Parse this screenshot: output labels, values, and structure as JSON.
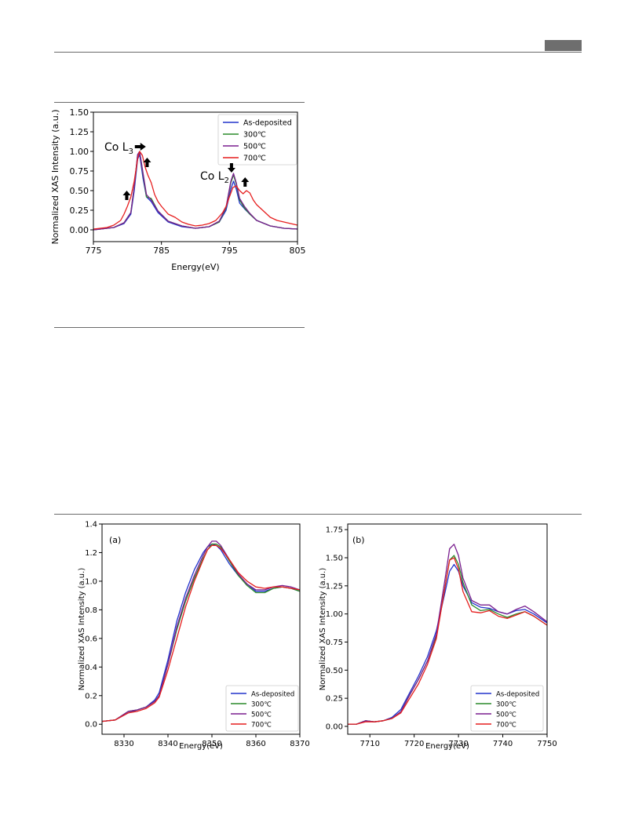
{
  "page": {
    "colors": {
      "rule": "#6a6a6a",
      "header_block": "#6e6e6e"
    }
  },
  "series_colors": {
    "As-deposited": "#2233cc",
    "300℃": "#2a8a2a",
    "500℃": "#7a1f8f",
    "700℃": "#e61e1e"
  },
  "chart_data": [
    {
      "type": "line",
      "xlabel": "Energy(eV)",
      "ylabel": "Normalized XAS Intensity (a.u.)",
      "xlim": [
        775,
        805
      ],
      "ylim": [
        -0.15,
        1.5
      ],
      "x_ticks": [
        "775",
        "785",
        "795",
        "805"
      ],
      "y_ticks": [
        "0.00",
        "0.25",
        "0.50",
        "0.75",
        "1.00",
        "1.25",
        "1.50"
      ],
      "legend_position": "top-right",
      "legend": [
        "As-deposited",
        "300℃",
        "500℃",
        "700℃"
      ],
      "annotations": {
        "l3": {
          "prefix": "Co L",
          "sub": "3"
        },
        "l2": {
          "prefix": "Co L",
          "sub": "2"
        }
      },
      "arrows": [
        {
          "dir": "right",
          "x": 781.9,
          "y": 1.06
        },
        {
          "dir": "up",
          "x": 782.9,
          "y": 0.86
        },
        {
          "dir": "up",
          "x": 779.9,
          "y": 0.44
        },
        {
          "dir": "down",
          "x": 795.3,
          "y": 0.79
        },
        {
          "dir": "up",
          "x": 797.3,
          "y": 0.61
        }
      ],
      "series": [
        {
          "name": "As-deposited",
          "x": [
            775,
            778,
            779.5,
            780.5,
            781,
            781.5,
            781.8,
            782.3,
            782.8,
            783.5,
            784.5,
            786,
            788,
            790,
            792,
            793.5,
            794.5,
            795.2,
            795.6,
            796,
            796.5,
            797.2,
            798,
            799,
            801,
            803,
            805
          ],
          "y": [
            0.0,
            0.03,
            0.08,
            0.2,
            0.5,
            0.9,
            0.96,
            0.65,
            0.42,
            0.36,
            0.22,
            0.1,
            0.04,
            0.02,
            0.04,
            0.1,
            0.25,
            0.52,
            0.62,
            0.52,
            0.34,
            0.27,
            0.2,
            0.12,
            0.05,
            0.02,
            0.01
          ]
        },
        {
          "name": "300℃",
          "x": [
            775,
            778,
            779.5,
            780.5,
            781,
            781.5,
            781.8,
            782.3,
            782.8,
            783.5,
            784.5,
            786,
            788,
            790,
            792,
            793.5,
            794.5,
            795.2,
            795.6,
            796,
            796.5,
            797.2,
            798,
            799,
            801,
            803,
            805
          ],
          "y": [
            0.0,
            0.03,
            0.09,
            0.22,
            0.55,
            0.95,
            1.0,
            0.7,
            0.42,
            0.4,
            0.24,
            0.11,
            0.05,
            0.02,
            0.04,
            0.1,
            0.28,
            0.6,
            0.7,
            0.58,
            0.38,
            0.28,
            0.2,
            0.12,
            0.05,
            0.02,
            0.01
          ]
        },
        {
          "name": "500℃",
          "x": [
            775,
            778,
            779.5,
            780.5,
            781,
            781.5,
            781.8,
            782.3,
            782.8,
            783.5,
            784.5,
            786,
            788,
            790,
            792,
            793.5,
            794.5,
            795.2,
            795.6,
            796,
            796.5,
            797.2,
            798,
            799,
            801,
            803,
            805
          ],
          "y": [
            0.0,
            0.03,
            0.09,
            0.22,
            0.55,
            0.96,
            1.0,
            0.72,
            0.45,
            0.38,
            0.24,
            0.11,
            0.05,
            0.02,
            0.04,
            0.11,
            0.29,
            0.62,
            0.72,
            0.6,
            0.4,
            0.3,
            0.21,
            0.12,
            0.05,
            0.02,
            0.01
          ]
        },
        {
          "name": "700℃",
          "x": [
            775,
            776,
            777,
            778,
            779,
            779.5,
            780,
            780.5,
            781,
            781.5,
            781.8,
            782.2,
            782.6,
            783,
            783.5,
            784,
            784.5,
            785,
            786,
            787,
            788,
            789,
            790,
            791,
            792,
            793,
            794,
            794.5,
            795,
            795.5,
            796,
            796.5,
            797,
            797.5,
            798,
            798.5,
            799,
            800,
            801,
            802,
            803,
            804,
            805
          ],
          "y": [
            0.01,
            0.02,
            0.03,
            0.06,
            0.12,
            0.2,
            0.3,
            0.42,
            0.62,
            0.9,
            1.0,
            0.95,
            0.8,
            0.7,
            0.6,
            0.45,
            0.36,
            0.3,
            0.2,
            0.16,
            0.1,
            0.07,
            0.05,
            0.06,
            0.08,
            0.12,
            0.22,
            0.3,
            0.42,
            0.54,
            0.56,
            0.5,
            0.46,
            0.5,
            0.47,
            0.38,
            0.32,
            0.24,
            0.16,
            0.12,
            0.1,
            0.08,
            0.06
          ]
        }
      ]
    },
    {
      "type": "line",
      "panel_label": "(a)",
      "xlabel": "Energy(eV)",
      "ylabel": "Normalized XAS Intensity (a.u.)",
      "xlim": [
        8325,
        8370
      ],
      "ylim": [
        -0.07,
        1.4
      ],
      "x_ticks": [
        "8330",
        "8340",
        "8350",
        "8360",
        "8370"
      ],
      "y_ticks": [
        "0.0",
        "0.2",
        "0.4",
        "0.6",
        "0.8",
        "1.0",
        "1.2",
        "1.4"
      ],
      "legend_position": "bottom-right",
      "legend": [
        "As-deposited",
        "300℃",
        "500℃",
        "700℃"
      ],
      "series": [
        {
          "name": "As-deposited",
          "x": [
            8325,
            8328,
            8331,
            8333,
            8335,
            8337,
            8338,
            8340,
            8342,
            8344,
            8346,
            8348,
            8349,
            8350,
            8351,
            8352,
            8354,
            8356,
            8358,
            8360,
            8362,
            8364,
            8366,
            8368,
            8370
          ],
          "y": [
            0.02,
            0.03,
            0.08,
            0.1,
            0.12,
            0.17,
            0.22,
            0.45,
            0.72,
            0.92,
            1.08,
            1.2,
            1.24,
            1.26,
            1.25,
            1.22,
            1.12,
            1.04,
            0.98,
            0.93,
            0.93,
            0.95,
            0.96,
            0.95,
            0.93
          ]
        },
        {
          "name": "300℃",
          "x": [
            8325,
            8328,
            8331,
            8333,
            8335,
            8337,
            8338,
            8340,
            8342,
            8344,
            8346,
            8348,
            8349,
            8350,
            8351,
            8352,
            8354,
            8356,
            8358,
            8360,
            8362,
            8364,
            8366,
            8368,
            8370
          ],
          "y": [
            0.02,
            0.03,
            0.09,
            0.1,
            0.12,
            0.16,
            0.2,
            0.42,
            0.66,
            0.86,
            1.02,
            1.16,
            1.22,
            1.26,
            1.26,
            1.24,
            1.14,
            1.04,
            0.97,
            0.92,
            0.92,
            0.95,
            0.96,
            0.95,
            0.93
          ]
        },
        {
          "name": "500℃",
          "x": [
            8325,
            8328,
            8331,
            8333,
            8335,
            8337,
            8338,
            8340,
            8342,
            8344,
            8346,
            8348,
            8349,
            8350,
            8351,
            8352,
            8354,
            8356,
            8358,
            8360,
            8362,
            8364,
            8366,
            8368,
            8370
          ],
          "y": [
            0.02,
            0.03,
            0.09,
            0.1,
            0.12,
            0.16,
            0.2,
            0.42,
            0.68,
            0.88,
            1.04,
            1.18,
            1.24,
            1.28,
            1.28,
            1.25,
            1.15,
            1.05,
            0.98,
            0.94,
            0.94,
            0.96,
            0.97,
            0.96,
            0.94
          ]
        },
        {
          "name": "700℃",
          "x": [
            8325,
            8328,
            8331,
            8333,
            8335,
            8337,
            8338,
            8340,
            8342,
            8344,
            8346,
            8348,
            8349,
            8350,
            8351,
            8352,
            8354,
            8356,
            8358,
            8360,
            8362,
            8364,
            8366,
            8368,
            8370
          ],
          "y": [
            0.02,
            0.03,
            0.08,
            0.09,
            0.11,
            0.15,
            0.19,
            0.38,
            0.6,
            0.82,
            1.0,
            1.15,
            1.22,
            1.25,
            1.25,
            1.23,
            1.15,
            1.06,
            1.0,
            0.96,
            0.95,
            0.96,
            0.96,
            0.95,
            0.94
          ]
        }
      ]
    },
    {
      "type": "line",
      "panel_label": "(b)",
      "xlabel": "Energy(eV)",
      "ylabel": "Normalized XAS Intensity (a.u.)",
      "xlim": [
        7705,
        7750
      ],
      "ylim": [
        -0.07,
        1.8
      ],
      "x_ticks": [
        "7710",
        "7720",
        "7730",
        "7740",
        "7750"
      ],
      "y_ticks": [
        "0.00",
        "0.25",
        "0.50",
        "0.75",
        "1.00",
        "1.25",
        "1.50",
        "1.75"
      ],
      "legend_position": "bottom-right",
      "legend": [
        "As-deposited",
        "300℃",
        "500℃",
        "700℃"
      ],
      "series": [
        {
          "name": "As-deposited",
          "x": [
            7705,
            7707,
            7709,
            7711,
            7713,
            7715,
            7717,
            7719,
            7721,
            7723,
            7725,
            7727,
            7728,
            7729,
            7730,
            7731,
            7733,
            7735,
            7737,
            7739,
            7741,
            7743,
            7745,
            7747,
            7750
          ],
          "y": [
            0.02,
            0.02,
            0.05,
            0.04,
            0.05,
            0.08,
            0.15,
            0.3,
            0.45,
            0.62,
            0.85,
            1.2,
            1.38,
            1.44,
            1.38,
            1.25,
            1.1,
            1.06,
            1.05,
            1.02,
            1.0,
            1.03,
            1.04,
            1.0,
            0.92
          ]
        },
        {
          "name": "300℃",
          "x": [
            7705,
            7707,
            7709,
            7711,
            7713,
            7715,
            7717,
            7719,
            7721,
            7723,
            7725,
            7727,
            7728,
            7729,
            7730,
            7731,
            7733,
            7735,
            7737,
            7739,
            7741,
            7743,
            7745,
            7747,
            7750
          ],
          "y": [
            0.02,
            0.02,
            0.05,
            0.04,
            0.05,
            0.07,
            0.13,
            0.28,
            0.42,
            0.58,
            0.8,
            1.25,
            1.48,
            1.52,
            1.44,
            1.28,
            1.08,
            1.03,
            1.04,
            1.0,
            0.97,
            1.0,
            1.02,
            0.98,
            0.9
          ]
        },
        {
          "name": "500℃",
          "x": [
            7705,
            7707,
            7709,
            7711,
            7713,
            7715,
            7717,
            7719,
            7721,
            7723,
            7725,
            7727,
            7728,
            7729,
            7730,
            7731,
            7733,
            7735,
            7737,
            7739,
            7741,
            7743,
            7745,
            7747,
            7750
          ],
          "y": [
            0.02,
            0.02,
            0.05,
            0.04,
            0.05,
            0.07,
            0.13,
            0.28,
            0.42,
            0.58,
            0.82,
            1.32,
            1.58,
            1.62,
            1.52,
            1.32,
            1.12,
            1.08,
            1.08,
            1.02,
            1.0,
            1.04,
            1.07,
            1.02,
            0.93
          ]
        },
        {
          "name": "700℃",
          "x": [
            7705,
            7707,
            7709,
            7711,
            7713,
            7715,
            7717,
            7719,
            7721,
            7723,
            7725,
            7727,
            7728,
            7729,
            7730,
            7731,
            7733,
            7735,
            7737,
            7739,
            7741,
            7743,
            7745,
            7747,
            7750
          ],
          "y": [
            0.02,
            0.02,
            0.04,
            0.04,
            0.05,
            0.07,
            0.12,
            0.25,
            0.38,
            0.55,
            0.78,
            1.25,
            1.48,
            1.5,
            1.4,
            1.2,
            1.02,
            1.01,
            1.03,
            0.98,
            0.96,
            0.99,
            1.02,
            0.98,
            0.9
          ]
        }
      ]
    }
  ]
}
